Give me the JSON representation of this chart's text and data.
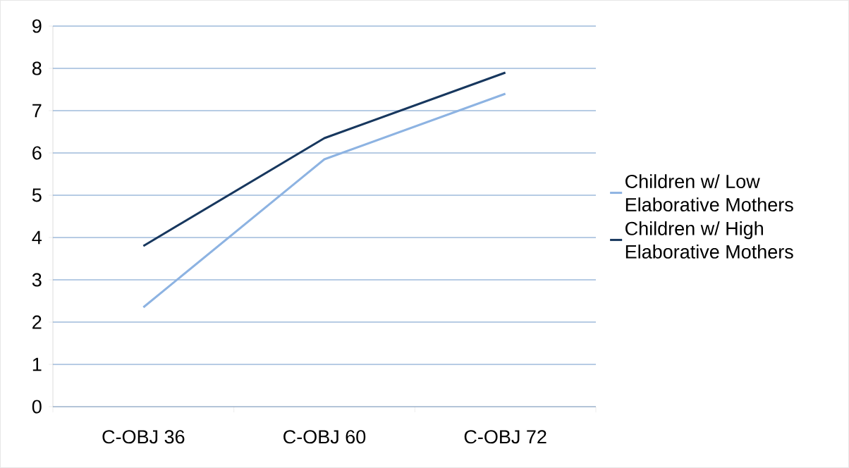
{
  "chart_data": {
    "type": "line",
    "categories": [
      "C-OBJ 36",
      "C-OBJ 60",
      "C-OBJ 72"
    ],
    "series": [
      {
        "name": "Children w/ Low Elaborative Mothers",
        "color": "#8db3e2",
        "values": [
          2.35,
          5.85,
          7.4
        ]
      },
      {
        "name": "Children w/ High Elaborative Mothers",
        "color": "#17375e",
        "values": [
          3.8,
          6.35,
          7.9
        ]
      }
    ],
    "ylim": [
      0,
      9
    ],
    "yticks": [
      0,
      1,
      2,
      3,
      4,
      5,
      6,
      7,
      8,
      9
    ],
    "grid": "y",
    "legend": "right"
  }
}
